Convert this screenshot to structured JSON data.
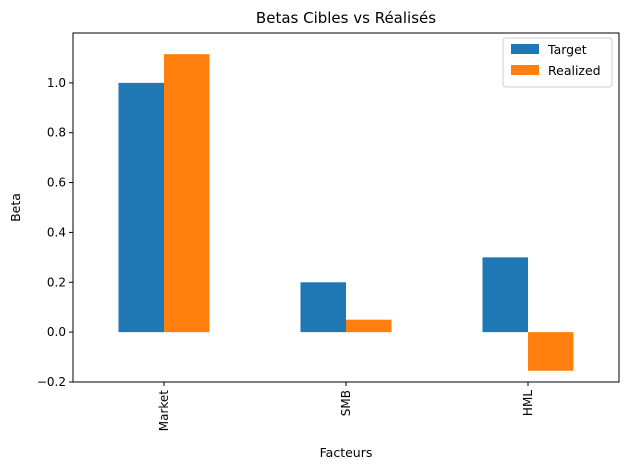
{
  "chart_data": {
    "type": "bar",
    "title": "Betas Cibles vs Réalisés",
    "xlabel": "Facteurs",
    "ylabel": "Beta",
    "categories": [
      "Market",
      "SMB",
      "HML"
    ],
    "series": [
      {
        "name": "Target",
        "color": "#1f77b4",
        "values": [
          1.0,
          0.2,
          0.3
        ]
      },
      {
        "name": "Realized",
        "color": "#ff7f0e",
        "values": [
          1.115,
          0.05,
          -0.155
        ]
      }
    ],
    "ylim": [
      -0.2,
      1.2
    ],
    "yticks": [
      -0.2,
      0.0,
      0.2,
      0.4,
      0.6,
      0.8,
      1.0
    ],
    "ytick_labels": [
      "−0.2",
      "0.0",
      "0.2",
      "0.4",
      "0.6",
      "0.8",
      "1.0"
    ],
    "grid": false,
    "legend_position": "upper right"
  }
}
